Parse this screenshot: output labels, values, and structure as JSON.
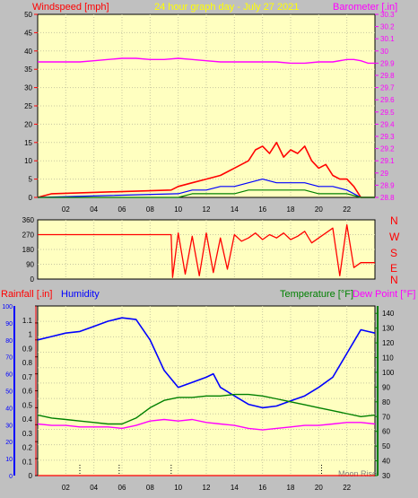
{
  "header": {
    "title": "24 hour graph day - July 27 2021",
    "windspeed_label": "Windspeed [mph]",
    "barometer_label": "Barometer [.in]"
  },
  "colors": {
    "panel_bg": "#ffffc0",
    "frame_bg": "#c0c0c0",
    "wind_speed": "#ff0000",
    "wind_gust": "#0000ff",
    "wind_avg": "#008000",
    "barometer": "#ff00ff",
    "direction": "#ff0000",
    "humidity": "#0000ff",
    "temperature": "#008000",
    "dew_point": "#ff00ff",
    "rainfall": "#ff0000",
    "marker": "#000000"
  },
  "chart_data": [
    {
      "type": "line",
      "name": "wind-barometer",
      "left_axis": {
        "label": "Windspeed [mph]",
        "range": [
          0,
          50
        ],
        "ticks": [
          0,
          5,
          10,
          15,
          20,
          25,
          30,
          35,
          40,
          45,
          50
        ]
      },
      "right_axis": {
        "label": "Barometer [.in]",
        "range": [
          28.8,
          30.3
        ],
        "ticks": [
          "28.8",
          "28.9",
          "29",
          "29.1",
          "29.2",
          "29.3",
          "29.4",
          "29.5",
          "29.6",
          "29.7",
          "29.8",
          "29.9",
          "30",
          "30.1",
          "30.2",
          "30.3"
        ]
      },
      "x_ticks": [
        "02",
        "04",
        "06",
        "08",
        "10",
        "12",
        "14",
        "16",
        "18",
        "20",
        "22"
      ],
      "grid": true,
      "series": [
        {
          "name": "Barometer",
          "axis": "right",
          "x": [
            0,
            1,
            2,
            3,
            4,
            5,
            6,
            7,
            8,
            9,
            10,
            11,
            12,
            13,
            14,
            15,
            16,
            17,
            18,
            19,
            20,
            21,
            22,
            22.5,
            23,
            23.5,
            24
          ],
          "y": [
            29.91,
            29.91,
            29.91,
            29.91,
            29.92,
            29.93,
            29.94,
            29.94,
            29.93,
            29.93,
            29.94,
            29.93,
            29.92,
            29.91,
            29.91,
            29.91,
            29.91,
            29.91,
            29.9,
            29.9,
            29.91,
            29.91,
            29.93,
            29.93,
            29.92,
            29.9,
            29.9
          ]
        },
        {
          "name": "Wind gust",
          "axis": "left",
          "x": [
            0,
            1,
            9.5,
            10,
            11,
            12,
            13,
            14,
            15,
            15.5,
            16,
            16.5,
            17,
            17.5,
            18,
            18.5,
            19,
            19.5,
            20,
            20.5,
            21,
            21.5,
            22,
            22.5,
            23,
            24
          ],
          "y": [
            0,
            1,
            2,
            3,
            4,
            5,
            6,
            8,
            10,
            13,
            14,
            12,
            15,
            11,
            13,
            12,
            14,
            10,
            8,
            9,
            6,
            5,
            5,
            3,
            0,
            0
          ]
        },
        {
          "name": "Wind average",
          "axis": "left",
          "x": [
            0,
            10,
            11,
            12,
            13,
            14,
            15,
            16,
            17,
            18,
            19,
            20,
            21,
            22,
            23,
            24
          ],
          "y": [
            0,
            1,
            2,
            2,
            3,
            3,
            4,
            5,
            4,
            4,
            4,
            3,
            3,
            2,
            0,
            0
          ]
        },
        {
          "name": "Wind low",
          "axis": "left",
          "x": [
            0,
            10,
            11,
            12,
            13,
            14,
            15,
            16,
            17,
            18,
            19,
            20,
            21,
            22,
            23,
            24
          ],
          "y": [
            0,
            0,
            1,
            1,
            1,
            1,
            2,
            2,
            2,
            2,
            2,
            1,
            1,
            1,
            0,
            0
          ]
        }
      ]
    },
    {
      "type": "line",
      "name": "wind-direction",
      "left_axis": {
        "range": [
          0,
          360
        ],
        "ticks": [
          0,
          90,
          180,
          270,
          360
        ]
      },
      "right_labels": [
        "N",
        "W",
        "S",
        "E",
        "N"
      ],
      "series": [
        {
          "name": "Direction",
          "x": [
            0,
            9.5,
            9.6,
            10,
            10.5,
            11,
            11.5,
            12,
            12.5,
            13,
            13.5,
            14,
            14.5,
            15,
            15.5,
            16,
            16.5,
            17,
            17.5,
            18,
            18.5,
            19,
            19.5,
            20,
            20.5,
            21,
            21.5,
            22,
            22.5,
            23,
            24
          ],
          "y": [
            270,
            270,
            10,
            280,
            30,
            260,
            20,
            280,
            40,
            250,
            60,
            270,
            230,
            250,
            280,
            240,
            270,
            250,
            280,
            240,
            260,
            290,
            220,
            250,
            280,
            310,
            20,
            330,
            70,
            100,
            100
          ]
        }
      ]
    },
    {
      "type": "line",
      "name": "rain-humidity-temperature",
      "left_axis": {
        "label": "Rainfall [.in]",
        "range": [
          0,
          1.2
        ],
        "ticks": [
          "0",
          "0.1",
          "0.2",
          "0.3",
          "0.4",
          "0.5",
          "0.6",
          "0.7",
          "0.8",
          "0.9",
          "1",
          "1.1"
        ]
      },
      "left_axis2": {
        "label": "Humidity",
        "range": [
          0,
          100
        ],
        "ticks": [
          0,
          10,
          20,
          30,
          40,
          50,
          60,
          70,
          80,
          90,
          100
        ]
      },
      "right_axis": {
        "label_temperature": "Temperature [°F]",
        "label_dew": "Dew Point [°F]",
        "range": [
          30,
          145
        ],
        "ticks": [
          30,
          40,
          50,
          60,
          70,
          80,
          90,
          100,
          110,
          120,
          130,
          140
        ]
      },
      "x_ticks": [
        "02",
        "04",
        "06",
        "08",
        "10",
        "12",
        "14",
        "16",
        "18",
        "20",
        "22"
      ],
      "corner_note": "Moon Rise",
      "series": [
        {
          "name": "Humidity",
          "axis": "left2",
          "x": [
            0,
            1,
            2,
            3,
            4,
            5,
            6,
            7,
            8,
            9,
            10,
            11,
            12,
            12.5,
            13,
            14,
            15,
            16,
            17,
            18,
            19,
            20,
            21,
            22,
            23,
            23.5,
            24
          ],
          "y": [
            80,
            82,
            84,
            85,
            88,
            91,
            93,
            92,
            80,
            62,
            52,
            55,
            58,
            60,
            52,
            47,
            42,
            40,
            41,
            44,
            47,
            52,
            58,
            72,
            86,
            85,
            84
          ]
        },
        {
          "name": "Temperature",
          "axis": "right",
          "x": [
            0,
            1,
            2,
            3,
            4,
            5,
            6,
            7,
            8,
            9,
            10,
            11,
            12,
            13,
            14,
            15,
            16,
            17,
            18,
            19,
            20,
            21,
            22,
            23,
            24
          ],
          "y": [
            71,
            69,
            68,
            67,
            66,
            65,
            65,
            69,
            76,
            81,
            83,
            83,
            84,
            84,
            85,
            85,
            84,
            82,
            80,
            78,
            76,
            74,
            72,
            70,
            71
          ]
        },
        {
          "name": "Dew Point",
          "axis": "right",
          "x": [
            0,
            1,
            2,
            3,
            4,
            5,
            6,
            7,
            8,
            9,
            10,
            11,
            12,
            13,
            14,
            15,
            16,
            17,
            18,
            19,
            20,
            21,
            22,
            23,
            24
          ],
          "y": [
            65,
            64,
            64,
            63,
            63,
            63,
            62,
            64,
            67,
            68,
            67,
            68,
            66,
            65,
            64,
            62,
            61,
            62,
            63,
            64,
            64,
            65,
            66,
            66,
            65
          ]
        },
        {
          "name": "Rainfall",
          "axis": "left",
          "x": [
            0,
            24
          ],
          "y": [
            0,
            0
          ]
        }
      ],
      "markers_x": [
        3,
        5.8,
        9.5,
        20.2
      ]
    }
  ],
  "bottom_labels": {
    "rainfall_label": "Rainfall [.in]",
    "humidity_label": "Humidity",
    "temperature_label": "Temperature [°F]",
    "dewpoint_label": "Dew Point [°F]"
  }
}
